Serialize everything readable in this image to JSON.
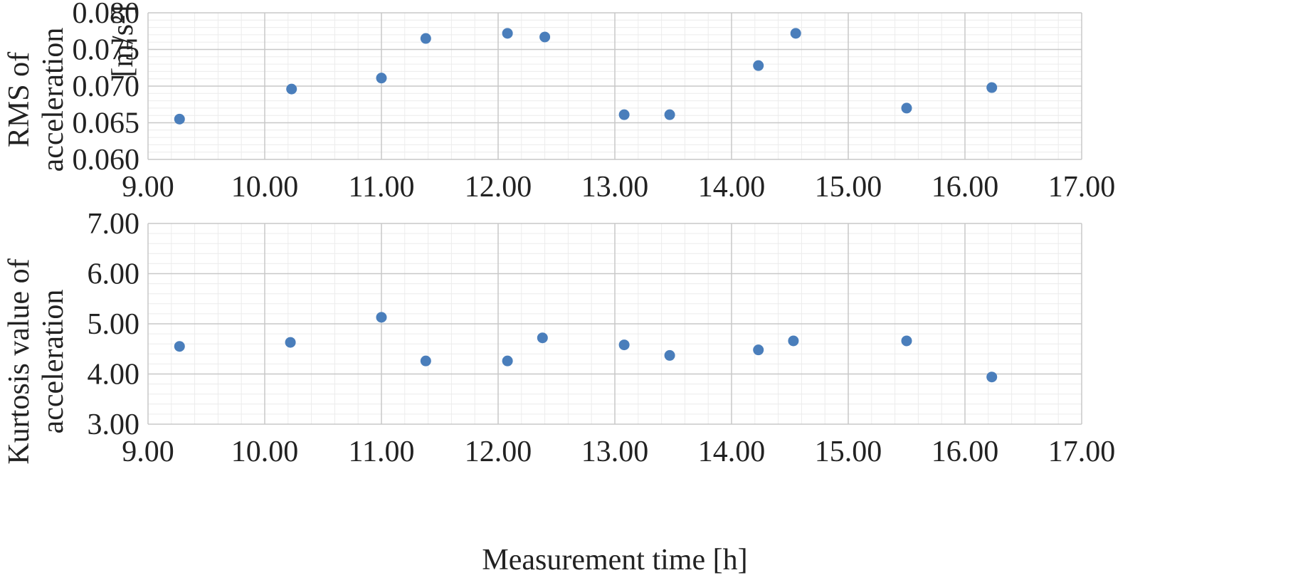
{
  "chart_data": [
    {
      "type": "scatter",
      "ylabel_lines": [
        "RMS of",
        "acceleration"
      ],
      "yunit": "[m/s²]",
      "xlabel": "",
      "xlim": [
        9.0,
        17.0
      ],
      "ylim": [
        0.06,
        0.08
      ],
      "x_ticks": [
        "9.00",
        "10.00",
        "11.00",
        "12.00",
        "13.00",
        "14.00",
        "15.00",
        "16.00",
        "17.00"
      ],
      "y_ticks": [
        "0.060",
        "0.065",
        "0.070",
        "0.075",
        "0.080"
      ],
      "grid": true,
      "marker_color": "#4a7ebb",
      "points": [
        {
          "x": 9.27,
          "y": 0.0655
        },
        {
          "x": 10.23,
          "y": 0.0696
        },
        {
          "x": 11.0,
          "y": 0.0711
        },
        {
          "x": 11.38,
          "y": 0.0765
        },
        {
          "x": 12.08,
          "y": 0.0772
        },
        {
          "x": 12.4,
          "y": 0.0767
        },
        {
          "x": 13.08,
          "y": 0.0661
        },
        {
          "x": 13.47,
          "y": 0.0661
        },
        {
          "x": 14.23,
          "y": 0.0728
        },
        {
          "x": 14.55,
          "y": 0.0772
        },
        {
          "x": 15.5,
          "y": 0.067
        },
        {
          "x": 16.23,
          "y": 0.0698
        }
      ]
    },
    {
      "type": "scatter",
      "ylabel_lines": [
        "Kurtosis value of",
        "acceleration"
      ],
      "xlabel": "Measurement time [h]",
      "xlim": [
        9.0,
        17.0
      ],
      "ylim": [
        3.0,
        7.0
      ],
      "x_ticks": [
        "9.00",
        "10.00",
        "11.00",
        "12.00",
        "13.00",
        "14.00",
        "15.00",
        "16.00",
        "17.00"
      ],
      "y_ticks": [
        "3.00",
        "4.00",
        "5.00",
        "6.00",
        "7.00"
      ],
      "grid": true,
      "marker_color": "#4a7ebb",
      "points": [
        {
          "x": 9.27,
          "y": 4.55
        },
        {
          "x": 10.22,
          "y": 4.63
        },
        {
          "x": 11.0,
          "y": 5.13
        },
        {
          "x": 11.38,
          "y": 4.26
        },
        {
          "x": 12.08,
          "y": 4.26
        },
        {
          "x": 12.38,
          "y": 4.72
        },
        {
          "x": 13.08,
          "y": 4.58
        },
        {
          "x": 13.47,
          "y": 4.37
        },
        {
          "x": 14.23,
          "y": 4.48
        },
        {
          "x": 14.53,
          "y": 4.66
        },
        {
          "x": 15.5,
          "y": 4.66
        },
        {
          "x": 16.23,
          "y": 3.94
        }
      ]
    }
  ]
}
